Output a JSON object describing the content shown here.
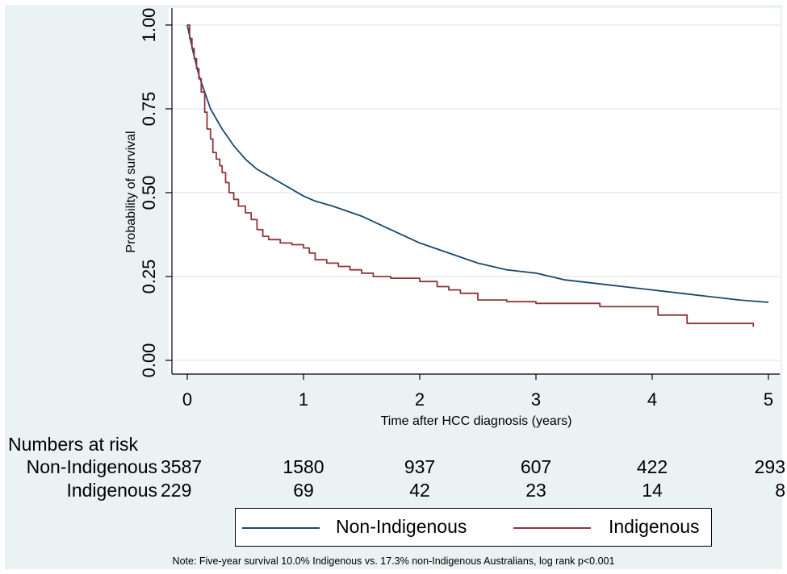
{
  "chart_data": {
    "type": "line",
    "xlabel": "Time after HCC diagnosis (years)",
    "ylabel": "Probability of survival",
    "xlim": [
      0,
      5
    ],
    "ylim": [
      0,
      1
    ],
    "x_ticks": [
      "0",
      "1",
      "2",
      "3",
      "4",
      "5"
    ],
    "y_ticks": [
      "0.00",
      "0.25",
      "0.50",
      "0.75",
      "1.00"
    ],
    "y_tick_values": [
      0,
      0.25,
      0.5,
      0.75,
      1
    ],
    "grid": true,
    "series": [
      {
        "name": "Non-Indigenous",
        "color": "#1a476f",
        "step": false,
        "x": [
          0,
          0.05,
          0.1,
          0.15,
          0.2,
          0.25,
          0.3,
          0.4,
          0.5,
          0.6,
          0.7,
          0.8,
          0.9,
          1.0,
          1.1,
          1.25,
          1.5,
          1.75,
          2.0,
          2.25,
          2.5,
          2.75,
          3.0,
          3.25,
          3.5,
          3.75,
          4.0,
          4.25,
          4.5,
          4.75,
          5.0
        ],
        "y": [
          1.0,
          0.92,
          0.85,
          0.8,
          0.75,
          0.72,
          0.69,
          0.64,
          0.6,
          0.57,
          0.55,
          0.53,
          0.51,
          0.49,
          0.475,
          0.46,
          0.43,
          0.39,
          0.35,
          0.32,
          0.29,
          0.27,
          0.26,
          0.24,
          0.23,
          0.22,
          0.21,
          0.2,
          0.19,
          0.18,
          0.173
        ]
      },
      {
        "name": "Indigenous",
        "color": "#90353b",
        "step": true,
        "x": [
          0,
          0.02,
          0.04,
          0.06,
          0.08,
          0.1,
          0.12,
          0.15,
          0.17,
          0.2,
          0.22,
          0.25,
          0.28,
          0.3,
          0.33,
          0.36,
          0.4,
          0.44,
          0.5,
          0.55,
          0.6,
          0.65,
          0.7,
          0.8,
          0.9,
          1.0,
          1.05,
          1.1,
          1.2,
          1.3,
          1.4,
          1.5,
          1.6,
          1.75,
          2.0,
          2.15,
          2.25,
          2.35,
          2.5,
          2.75,
          3.0,
          3.25,
          3.55,
          4.05,
          4.3,
          4.87
        ],
        "y": [
          1.0,
          0.96,
          0.93,
          0.9,
          0.87,
          0.84,
          0.8,
          0.74,
          0.69,
          0.66,
          0.62,
          0.6,
          0.58,
          0.56,
          0.53,
          0.5,
          0.48,
          0.46,
          0.44,
          0.42,
          0.39,
          0.37,
          0.36,
          0.35,
          0.345,
          0.335,
          0.32,
          0.3,
          0.29,
          0.28,
          0.27,
          0.26,
          0.25,
          0.245,
          0.235,
          0.22,
          0.21,
          0.2,
          0.18,
          0.175,
          0.17,
          0.17,
          0.16,
          0.135,
          0.11,
          0.1
        ]
      }
    ]
  },
  "risk_table": {
    "title": "Numbers at risk",
    "rows": [
      {
        "label": "Non-Indigenous",
        "values": [
          "3587",
          "1580",
          "937",
          "607",
          "422",
          "293"
        ]
      },
      {
        "label": "Indigenous",
        "values": [
          "229",
          "69",
          "42",
          "23",
          "14",
          "8"
        ]
      }
    ]
  },
  "legend": {
    "items": [
      {
        "label": "Non-Indigenous",
        "color": "#1a476f"
      },
      {
        "label": "Indigenous",
        "color": "#90353b"
      }
    ]
  },
  "note": "Note: Five-year survival 10.0% Indigenous vs. 17.3% non-Indigenous Australians, log rank p<0.001"
}
